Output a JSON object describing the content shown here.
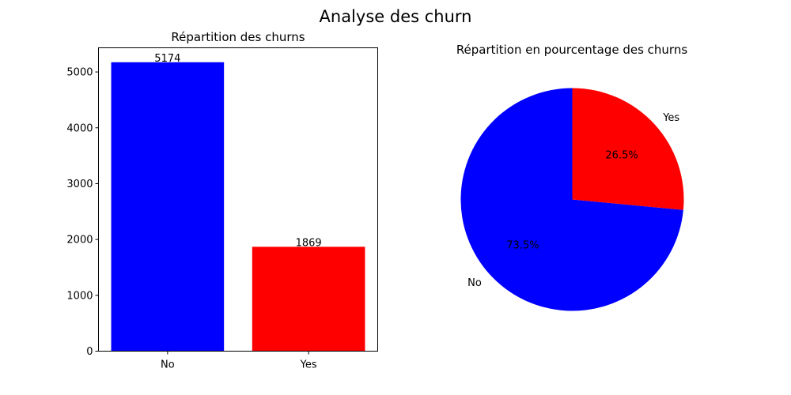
{
  "figure_title": "Analyse des churn",
  "chart_data": [
    {
      "type": "bar",
      "title": "Répartition des churns",
      "xlabel": "",
      "ylabel": "",
      "categories": [
        "No",
        "Yes"
      ],
      "values": [
        5174,
        1869
      ],
      "colors": [
        "#0000ff",
        "#ff0000"
      ],
      "data_labels": [
        "5174",
        "1869"
      ],
      "yticks": [
        0,
        1000,
        2000,
        3000,
        4000,
        5000
      ],
      "ylim": [
        0,
        5432.7
      ],
      "grid": false
    },
    {
      "type": "pie",
      "title": "Répartition en pourcentage des churns",
      "labels": [
        "No",
        "Yes"
      ],
      "values": [
        73.5,
        26.5
      ],
      "value_labels": [
        "73.5%",
        "26.5%"
      ],
      "colors": [
        "#0000ff",
        "#ff0000"
      ],
      "start_angle_deg": 90
    }
  ]
}
